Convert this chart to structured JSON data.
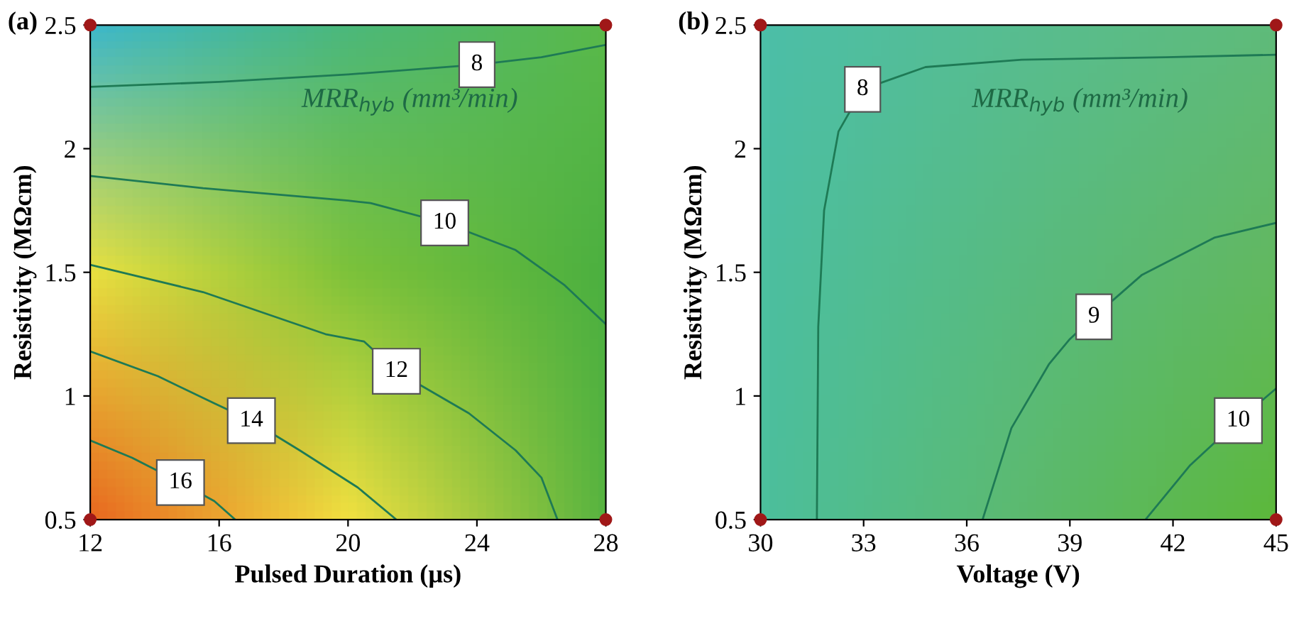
{
  "chart_data": [
    {
      "type": "line",
      "title": "(a)",
      "xlabel": "Pulsed Duration (µs)",
      "ylabel": "Resistivity (MΩcm)",
      "annotations": [
        "MRR$_{hyb}$ (mm³/min)"
      ],
      "xlim": [
        12,
        28
      ],
      "ylim": [
        0.5,
        2.5
      ],
      "xticks": [
        12,
        16,
        20,
        24,
        28
      ],
      "yticks": [
        0.5,
        1,
        1.5,
        2,
        2.5
      ],
      "grid": false,
      "legend": false,
      "marker": "none",
      "line_style": "solid",
      "series": [
        {
          "name": "8",
          "color": "#1e7a55",
          "x": [
            12,
            16,
            20,
            24,
            26,
            28
          ],
          "values": [
            2.25,
            2.27,
            2.3,
            2.34,
            2.37,
            2.42
          ]
        },
        {
          "name": "10",
          "color": "#1e7a55",
          "x": [
            12,
            15.5,
            20,
            20.7,
            23,
            25.2,
            26.7,
            28
          ],
          "values": [
            1.89,
            1.84,
            1.79,
            1.78,
            1.7,
            1.59,
            1.45,
            1.29
          ]
        },
        {
          "name": "12",
          "color": "#1e7a55",
          "x": [
            12,
            15.5,
            19.3,
            20.5,
            21.5,
            23.75,
            25.2,
            26,
            26.5
          ],
          "values": [
            1.53,
            1.42,
            1.25,
            1.22,
            1.1,
            0.93,
            0.78,
            0.67,
            0.5
          ]
        },
        {
          "name": "14",
          "color": "#1e7a55",
          "x": [
            12,
            14.1,
            15.85,
            17,
            18.5,
            20.3,
            21.5
          ],
          "values": [
            1.18,
            1.08,
            0.97,
            0.9,
            0.78,
            0.63,
            0.5
          ]
        },
        {
          "name": "16",
          "color": "#1e7a55",
          "x": [
            12,
            13.3,
            14.8,
            15.85,
            16.5
          ],
          "values": [
            0.82,
            0.75,
            0.65,
            0.575,
            0.5
          ]
        },
        {
          "type": "scatter",
          "color": "#a01818",
          "marker": "circle",
          "x": [
            12,
            12,
            28,
            28
          ],
          "values": [
            0.5,
            2.5,
            0.5,
            2.5
          ]
        }
      ]
    },
    {
      "type": "line",
      "title": "(b)",
      "xlabel": "Voltage (V)",
      "ylabel": "Resistivity (MΩcm)",
      "annotations": [
        "MRR$_{hyb}$ (mm³/min)"
      ],
      "xlim": [
        30,
        45
      ],
      "ylim": [
        0.5,
        2.5
      ],
      "xticks": [
        30,
        33,
        36,
        39,
        42,
        45
      ],
      "yticks": [
        0.5,
        1,
        1.5,
        2,
        2.5
      ],
      "grid": false,
      "legend": false,
      "marker": "none",
      "line_style": "solid",
      "series": [
        {
          "name": "8",
          "color": "#1e7a55",
          "x": [
            31.64,
            31.68,
            31.85,
            32.27,
            32.97,
            34.8,
            37.6,
            41.8,
            45
          ],
          "values": [
            0.5,
            1.28,
            1.75,
            2.07,
            2.24,
            2.33,
            2.36,
            2.37,
            2.38
          ]
        },
        {
          "name": "9",
          "color": "#1e7a55",
          "x": [
            36.46,
            37.3,
            38.4,
            39.0,
            39.7,
            41.1,
            43.2,
            45
          ],
          "values": [
            0.5,
            0.87,
            1.13,
            1.23,
            1.32,
            1.49,
            1.64,
            1.7
          ]
        },
        {
          "name": "10",
          "color": "#1e7a55",
          "x": [
            41.2,
            42.5,
            43.9,
            45
          ],
          "values": [
            0.5,
            0.72,
            0.9,
            1.03
          ]
        },
        {
          "type": "scatter",
          "color": "#a01818",
          "marker": "circle",
          "x": [
            30,
            30,
            45,
            45
          ],
          "values": [
            0.5,
            2.5,
            0.5,
            2.5
          ]
        }
      ]
    }
  ]
}
